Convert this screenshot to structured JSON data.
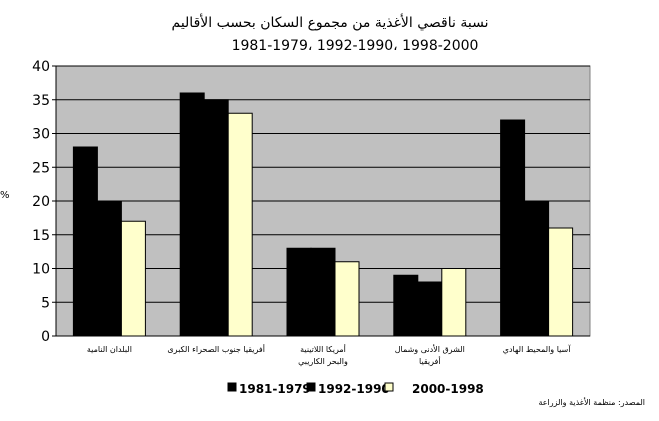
{
  "chart_data": {
    "type": "bar",
    "title": "نسبة ناقصي الأغذية من مجموع السكان بحسب الأقاليم",
    "subtitle": "1981-1979، 1992-1990، 1998-2000",
    "ylabel": "%",
    "ylim": [
      0,
      40
    ],
    "yticks": [
      0,
      5,
      10,
      15,
      20,
      25,
      30,
      35,
      40
    ],
    "grid": true,
    "categories": [
      [
        "البلدان النامية"
      ],
      [
        "أفريقيا جنوب الصحراء الكبرى"
      ],
      [
        "أمريكا اللاتينية",
        "والبحر الكاريبي"
      ],
      [
        "الشرق الأدنى وشمال",
        "أفريقيا"
      ],
      [
        "آسيا والمحيط الهادي"
      ]
    ],
    "series": [
      {
        "name": "1981-1979",
        "color": "#000000",
        "values": [
          28,
          36,
          13,
          9,
          32
        ]
      },
      {
        "name": "1992-1990",
        "color": "#000000",
        "values": [
          20,
          35,
          13,
          8,
          20
        ]
      },
      {
        "name": "2000-1998",
        "color": "#ffffcc",
        "values": [
          17,
          33,
          11,
          10,
          16
        ]
      }
    ],
    "legend_position": "bottom",
    "source": "المصدر: منظمة الأغذية والزراعة"
  },
  "colors": {
    "plot_background": "#c0c0c0",
    "gridline": "#000000"
  }
}
